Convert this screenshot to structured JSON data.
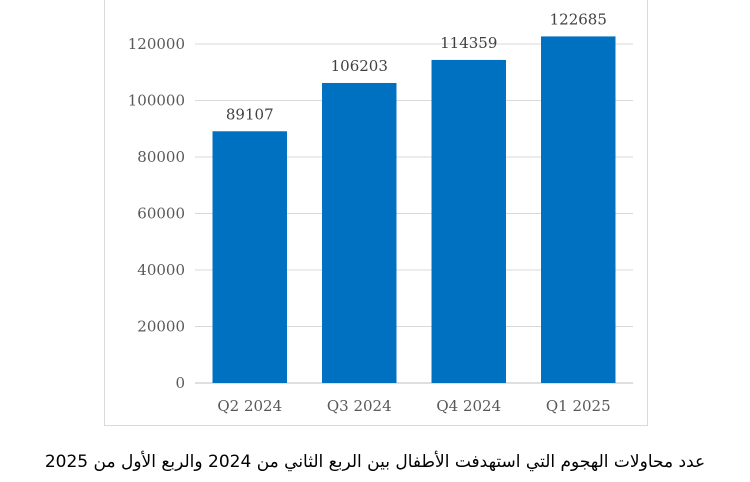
{
  "chart_data": {
    "type": "bar",
    "categories": [
      "Q2 2024",
      "Q3 2024",
      "Q4 2024",
      "Q1 2025"
    ],
    "values": [
      89107,
      106203,
      114359,
      122685
    ],
    "data_labels": [
      "89107",
      "106203",
      "114359",
      "122685"
    ],
    "y_ticks": [
      "0",
      "20000",
      "40000",
      "60000",
      "80000",
      "100000",
      "120000"
    ],
    "ylim": [
      0,
      120000
    ],
    "bar_color": "#0070c0",
    "grid": true,
    "legend": "none",
    "caption": "عدد محاولات الهجوم التي استهدفت الأطفال بين الربع الثاني من 2024 والربع الأول من 2025"
  }
}
